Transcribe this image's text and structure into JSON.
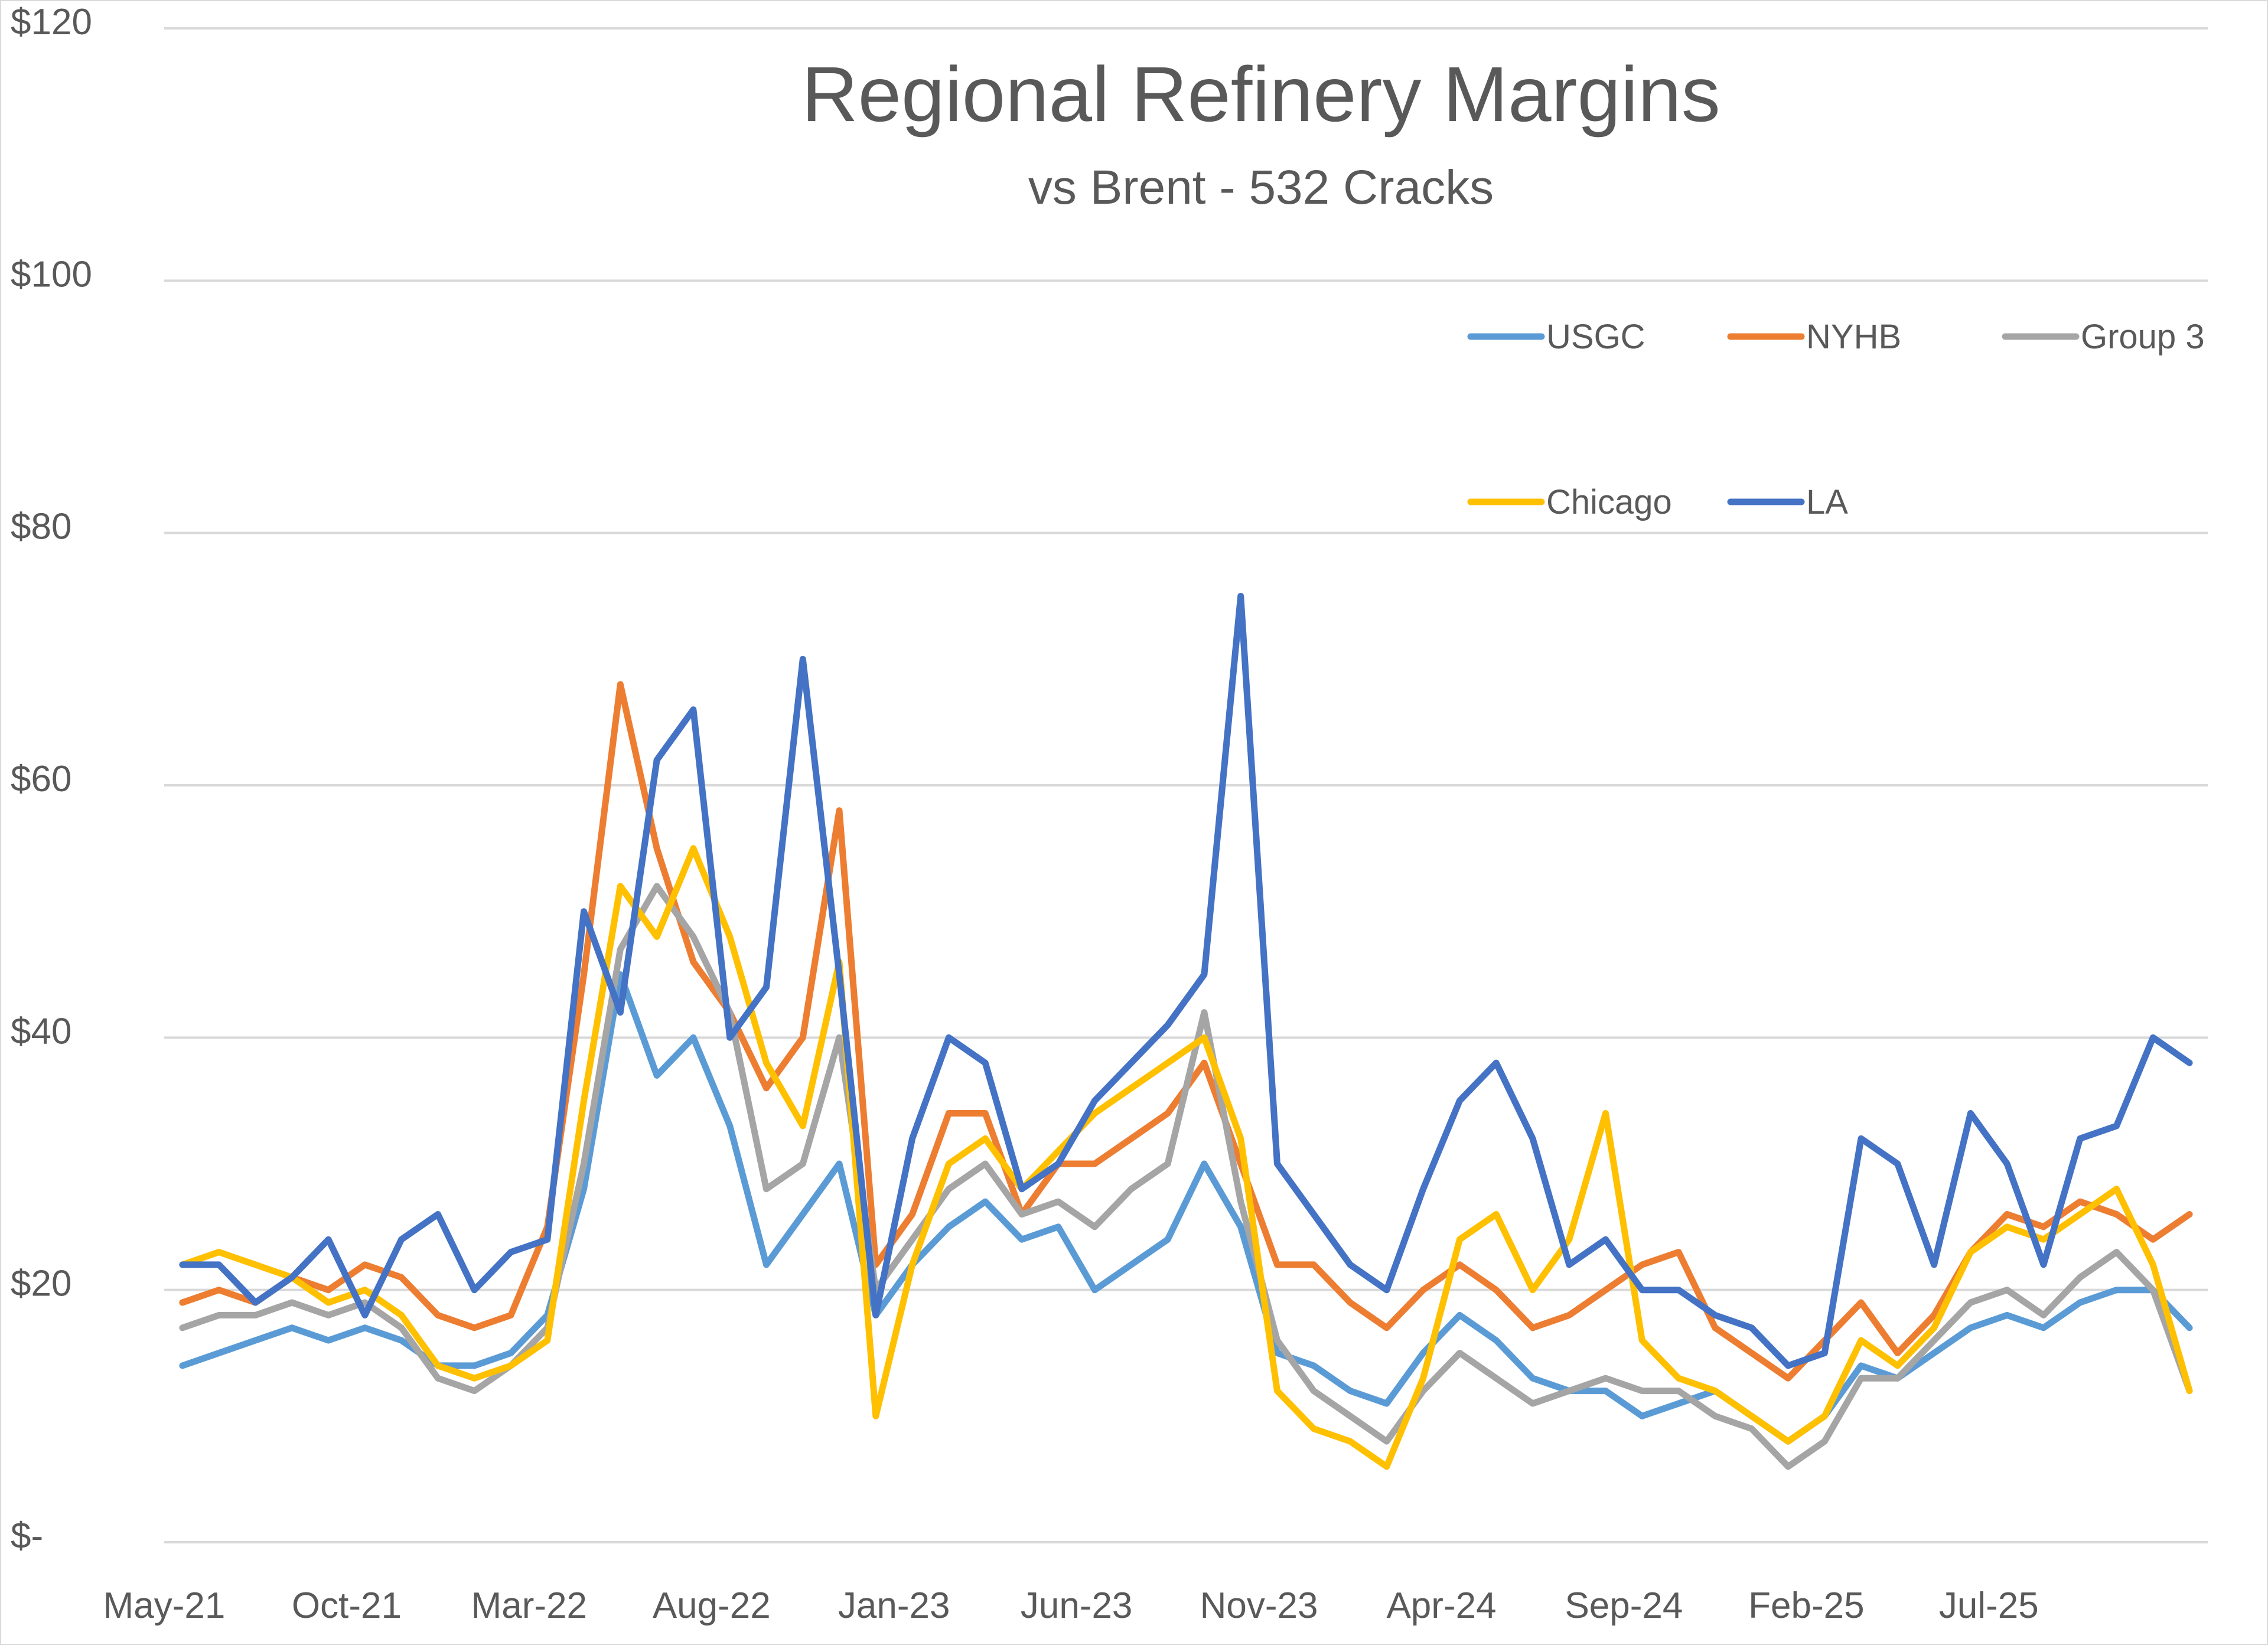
{
  "chart_data": {
    "type": "line",
    "title": "Regional Refinery Margins",
    "subtitle": "vs Brent - 532 Cracks",
    "xlabel": "",
    "ylabel": "",
    "ylim": [
      0,
      120
    ],
    "y_ticks": [
      {
        "value": 0,
        "label": "$-"
      },
      {
        "value": 20,
        "label": "$20"
      },
      {
        "value": 40,
        "label": "$40"
      },
      {
        "value": 60,
        "label": "$60"
      },
      {
        "value": 80,
        "label": "$80"
      },
      {
        "value": 100,
        "label": "$100"
      },
      {
        "value": 120,
        "label": "$120"
      }
    ],
    "x_ticks": [
      "May-21",
      "Oct-21",
      "Mar-22",
      "Aug-22",
      "Jan-23",
      "Jun-23",
      "Nov-23",
      "Apr-24",
      "Sep-24",
      "Feb-25",
      "Jul-25"
    ],
    "x_domain": [
      "May-21",
      "Dec-25"
    ],
    "grid": true,
    "legend_position": "top-right",
    "x": [
      "May-21",
      "Jun-21",
      "Jul-21",
      "Aug-21",
      "Sep-21",
      "Oct-21",
      "Nov-21",
      "Dec-21",
      "Jan-22",
      "Feb-22",
      "Mar-22",
      "Apr-22",
      "May-22",
      "Jun-22",
      "Jul-22",
      "Aug-22",
      "Sep-22",
      "Oct-22",
      "Nov-22",
      "Dec-22",
      "Jan-23",
      "Feb-23",
      "Mar-23",
      "Apr-23",
      "May-23",
      "Jun-23",
      "Jul-23",
      "Aug-23",
      "Sep-23",
      "Oct-23",
      "Nov-23",
      "Dec-23",
      "Jan-24",
      "Feb-24",
      "Mar-24",
      "Apr-24",
      "May-24",
      "Jun-24",
      "Jul-24",
      "Aug-24",
      "Sep-24",
      "Oct-24",
      "Nov-24",
      "Dec-24",
      "Jan-25",
      "Feb-25",
      "Mar-25",
      "Apr-25",
      "May-25",
      "Jun-25",
      "Jul-25",
      "Aug-25",
      "Sep-25",
      "Oct-25",
      "Nov-25",
      "Dec-25"
    ],
    "series": [
      {
        "name": "USGC",
        "color": "#5B9BD5",
        "values": [
          14,
          15,
          16,
          17,
          16,
          17,
          16,
          14,
          14,
          15,
          18,
          28,
          45,
          37,
          40,
          33,
          22,
          26,
          30,
          18,
          22,
          25,
          27,
          24,
          25,
          20,
          22,
          24,
          30,
          25,
          15,
          14,
          12,
          11,
          15,
          18,
          16,
          13,
          12,
          12,
          10,
          11,
          12,
          10,
          8,
          10,
          14,
          13,
          15,
          17,
          18,
          17,
          19,
          20,
          20,
          17
        ]
      },
      {
        "name": "NYHB",
        "color": "#ED7D31",
        "values": [
          19,
          20,
          19,
          21,
          20,
          22,
          21,
          18,
          17,
          18,
          25,
          45,
          68,
          55,
          46,
          42,
          36,
          40,
          58,
          22,
          26,
          34,
          34,
          26,
          30,
          30,
          32,
          34,
          38,
          30,
          22,
          22,
          19,
          17,
          20,
          22,
          20,
          17,
          18,
          20,
          22,
          23,
          17,
          15,
          13,
          16,
          19,
          15,
          18,
          23,
          26,
          25,
          27,
          26,
          24,
          26
        ]
      },
      {
        "name": "Group 3",
        "color": "#A5A5A5",
        "values": [
          17,
          18,
          18,
          19,
          18,
          19,
          17,
          13,
          12,
          14,
          17,
          30,
          47,
          52,
          48,
          42,
          28,
          30,
          40,
          20,
          24,
          28,
          30,
          26,
          27,
          25,
          28,
          30,
          42,
          27,
          16,
          12,
          10,
          8,
          12,
          15,
          13,
          11,
          12,
          13,
          12,
          12,
          10,
          9,
          6,
          8,
          13,
          13,
          16,
          19,
          20,
          18,
          21,
          23,
          20,
          12
        ]
      },
      {
        "name": "Chicago",
        "color": "#FFC000",
        "values": [
          22,
          23,
          22,
          21,
          19,
          20,
          18,
          14,
          13,
          14,
          16,
          35,
          52,
          48,
          55,
          48,
          38,
          33,
          46,
          10,
          22,
          30,
          32,
          28,
          31,
          34,
          36,
          38,
          40,
          32,
          12,
          9,
          8,
          6,
          13,
          24,
          26,
          20,
          24,
          34,
          16,
          13,
          12,
          10,
          8,
          10,
          16,
          14,
          17,
          23,
          25,
          24,
          26,
          28,
          22,
          12
        ]
      },
      {
        "name": "LA",
        "color": "#4472C4",
        "values": [
          22,
          22,
          19,
          21,
          24,
          18,
          24,
          26,
          20,
          23,
          24,
          50,
          42,
          62,
          66,
          40,
          44,
          70,
          45,
          18,
          32,
          40,
          38,
          28,
          30,
          35,
          38,
          41,
          45,
          75,
          30,
          26,
          22,
          20,
          28,
          35,
          38,
          32,
          22,
          24,
          20,
          20,
          18,
          17,
          14,
          15,
          32,
          30,
          22,
          34,
          30,
          22,
          32,
          33,
          40,
          38
        ]
      }
    ]
  }
}
